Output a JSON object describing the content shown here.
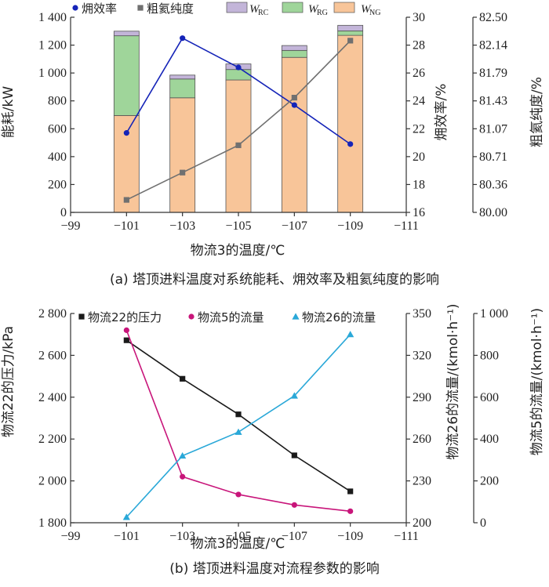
{
  "chart_data": [
    {
      "type": "bar",
      "caption": "(a) 塔顶进料温度对系统能耗、㶲效率及粗氦纯度的影响",
      "xlabel": "物流3的温度/℃",
      "ylabel": "能耗/kW",
      "ylabel_right": "㶲效率/%",
      "ylabel_right2": "粗氦纯度/%",
      "x_ticks": [
        "−99",
        "−101",
        "−103",
        "−105",
        "−107",
        "−109",
        "−111"
      ],
      "xlim": [
        -99,
        -111
      ],
      "ylim": [
        0,
        1400
      ],
      "y_ticks": [
        "0",
        "200",
        "400",
        "600",
        "800",
        "1 000",
        "1 200",
        "1 400"
      ],
      "ylim_right": [
        16,
        30
      ],
      "y_ticks_right": [
        "16",
        "18",
        "20",
        "22",
        "24",
        "26",
        "28",
        "30"
      ],
      "ylim_right2": [
        80.0,
        82.5
      ],
      "y_ticks_right2": [
        "80.00",
        "80.36",
        "80.71",
        "81.07",
        "81.43",
        "81.79",
        "82.14",
        "82.50"
      ],
      "categories": [
        -101,
        -103,
        -105,
        -107,
        -109
      ],
      "stacked_series": [
        {
          "key": "NG",
          "name": "W_NG",
          "name_main": "W",
          "name_sub": "NG",
          "color": "#f8c599",
          "values": [
            695,
            822,
            950,
            1112,
            1270
          ]
        },
        {
          "key": "RG",
          "name": "W_RG",
          "name_main": "W",
          "name_sub": "RG",
          "color": "#9fd59a",
          "values": [
            572,
            135,
            75,
            50,
            32
          ]
        },
        {
          "key": "RC",
          "name": "W_RC",
          "name_main": "W",
          "name_sub": "RC",
          "color": "#c3b5d9",
          "values": [
            33,
            28,
            40,
            35,
            40
          ]
        }
      ],
      "line_series": [
        {
          "key": "exergy",
          "name": "㶲效率",
          "axis": "right",
          "color": "#1524b8",
          "marker": "circle",
          "x": [
            -101,
            -103,
            -105,
            -107,
            -109
          ],
          "y": [
            21.7,
            28.5,
            26.4,
            23.7,
            20.9
          ]
        },
        {
          "key": "purity",
          "name": "粗氦纯度",
          "axis": "right2",
          "color": "#707070",
          "marker": "square",
          "x": [
            -101,
            -103,
            -105,
            -107,
            -109
          ],
          "y": [
            80.16,
            80.51,
            80.86,
            81.47,
            82.2
          ]
        }
      ],
      "legend_location": "top"
    },
    {
      "type": "line",
      "caption": "(b) 塔顶进料温度对流程参数的影响",
      "xlabel": "物流3的温度/℃",
      "ylabel": "物流22的压力/kPa",
      "ylabel_right": "物流26的流量/(kmol·h⁻¹)",
      "ylabel_right2": "物流5的流量/(kmol·h⁻¹)",
      "x_ticks": [
        "−99",
        "−101",
        "−103",
        "−105",
        "−107",
        "−109",
        "−111"
      ],
      "xlim": [
        -99,
        -111
      ],
      "ylim": [
        1800,
        2800
      ],
      "y_ticks": [
        "1 800",
        "2 000",
        "2 200",
        "2 400",
        "2 600",
        "2 800"
      ],
      "ylim_right": [
        200,
        350
      ],
      "y_ticks_right": [
        "200",
        "230",
        "260",
        "290",
        "320",
        "350"
      ],
      "ylim_right2": [
        0,
        1000
      ],
      "y_ticks_right2": [
        "0",
        "200",
        "400",
        "600",
        "800",
        "1 000"
      ],
      "series": [
        {
          "key": "p22",
          "name": "物流22的压力",
          "axis": "left",
          "color": "#1a1a1a",
          "marker": "square",
          "x": [
            -101,
            -103,
            -105,
            -107,
            -109
          ],
          "y": [
            2672,
            2488,
            2318,
            2122,
            1950
          ]
        },
        {
          "key": "f5",
          "name": "物流5的流量",
          "axis": "right2",
          "color": "#c8157a",
          "marker": "circle",
          "x": [
            -101,
            -103,
            -105,
            -107,
            -109
          ],
          "y": [
            920,
            220,
            135,
            85,
            55
          ]
        },
        {
          "key": "f26",
          "name": "物流26的流量",
          "axis": "right",
          "color": "#2aa8d8",
          "marker": "triangle",
          "x": [
            -101,
            -103,
            -105,
            -107,
            -109
          ],
          "y": [
            204,
            248,
            265,
            291,
            335
          ]
        }
      ],
      "legend_location": "top"
    }
  ]
}
